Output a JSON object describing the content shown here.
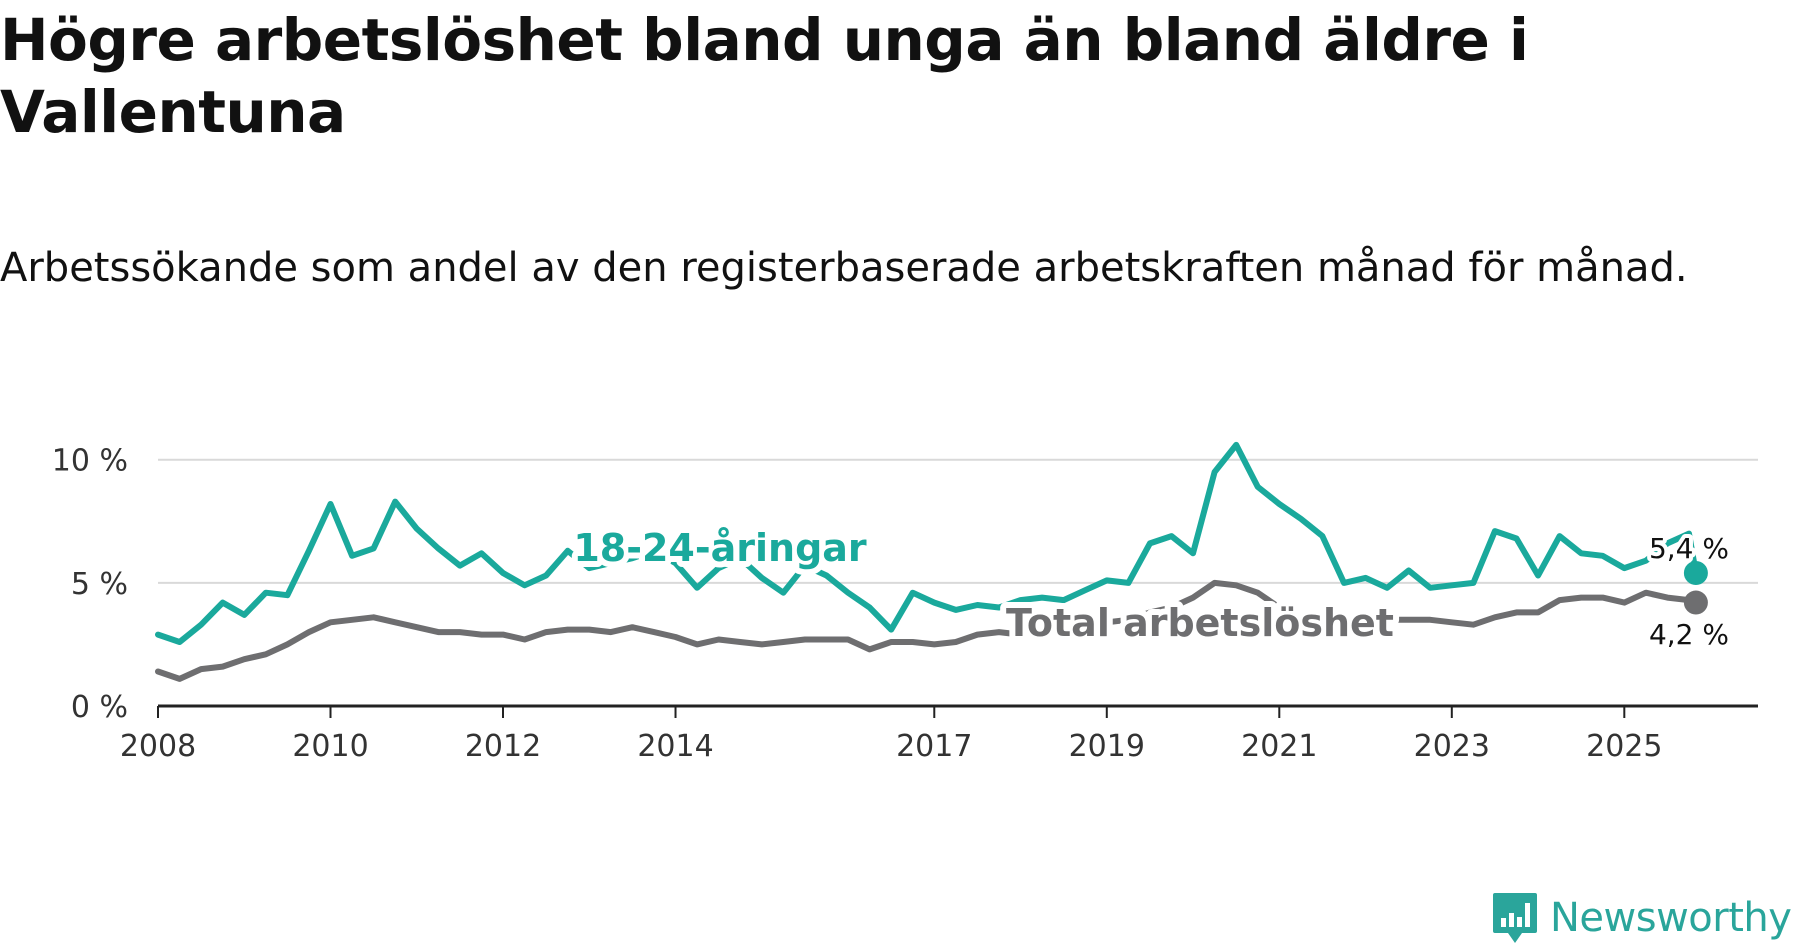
{
  "title": "Högre arbetslöshet bland unga än bland äldre i Vallentuna",
  "subtitle": "Arbetssökande som andel av den registerbaserade arbetskraften månad för månad.",
  "brand": {
    "name": "Newsworthy",
    "color": "#2aa59b",
    "icon": "bar-chart-logo-icon"
  },
  "chart_data": {
    "type": "line",
    "title": "Högre arbetslöshet bland unga än bland äldre i Vallentuna",
    "subtitle": "Arbetssökande som andel av den registerbaserade arbetskraften månad för månad.",
    "xlabel": "",
    "ylabel": "",
    "x_range": [
      2008,
      2026.55
    ],
    "ylim": [
      0,
      10.8
    ],
    "x_ticks": [
      2008,
      2010,
      2012,
      2014,
      2017,
      2019,
      2021,
      2023,
      2025
    ],
    "y_ticks": [
      0,
      5,
      10
    ],
    "y_tick_labels": [
      "0 %",
      "5 %",
      "10 %"
    ],
    "grid": true,
    "series": [
      {
        "name": "18-24-åringar",
        "color": "#1aa99c",
        "end_label": "5,4 %",
        "last_value": 5.4,
        "x": [
          2008.0,
          2008.25,
          2008.5,
          2008.75,
          2009.0,
          2009.25,
          2009.5,
          2009.75,
          2010.0,
          2010.25,
          2010.5,
          2010.75,
          2011.0,
          2011.25,
          2011.5,
          2011.75,
          2012.0,
          2012.25,
          2012.5,
          2012.75,
          2013.0,
          2013.25,
          2013.5,
          2013.75,
          2014.0,
          2014.25,
          2014.5,
          2014.75,
          2015.0,
          2015.25,
          2015.5,
          2015.75,
          2016.0,
          2016.25,
          2016.5,
          2016.75,
          2017.0,
          2017.25,
          2017.5,
          2017.75,
          2018.0,
          2018.25,
          2018.5,
          2018.75,
          2019.0,
          2019.25,
          2019.5,
          2019.75,
          2020.0,
          2020.25,
          2020.5,
          2020.75,
          2021.0,
          2021.25,
          2021.5,
          2021.75,
          2022.0,
          2022.25,
          2022.5,
          2022.75,
          2023.0,
          2023.25,
          2023.5,
          2023.75,
          2024.0,
          2024.25,
          2024.5,
          2024.75,
          2025.0,
          2025.25,
          2025.5,
          2025.75,
          2025.83
        ],
        "values": [
          2.9,
          2.6,
          3.3,
          4.2,
          3.7,
          4.6,
          4.5,
          6.3,
          8.2,
          6.1,
          6.4,
          8.3,
          7.2,
          6.4,
          5.7,
          6.2,
          5.4,
          4.9,
          5.3,
          6.3,
          5.6,
          5.8,
          6.0,
          6.3,
          5.8,
          4.8,
          5.6,
          6.0,
          5.2,
          4.6,
          5.7,
          5.3,
          4.6,
          4.0,
          3.1,
          4.6,
          4.2,
          3.9,
          4.1,
          4.0,
          4.3,
          4.4,
          4.3,
          4.7,
          5.1,
          5.0,
          6.6,
          6.9,
          6.2,
          9.5,
          10.6,
          8.9,
          8.2,
          7.6,
          6.9,
          5.0,
          5.2,
          4.8,
          5.5,
          4.8,
          4.9,
          5.0,
          7.1,
          6.8,
          5.3,
          6.9,
          6.2,
          6.1,
          5.6,
          5.9,
          6.6,
          7.0,
          5.4
        ]
      },
      {
        "name": "Total arbetslöshet",
        "color": "#6e6e70",
        "end_label": "4,2 %",
        "last_value": 4.2,
        "x": [
          2008.0,
          2008.25,
          2008.5,
          2008.75,
          2009.0,
          2009.25,
          2009.5,
          2009.75,
          2010.0,
          2010.25,
          2010.5,
          2010.75,
          2011.0,
          2011.25,
          2011.5,
          2011.75,
          2012.0,
          2012.25,
          2012.5,
          2012.75,
          2013.0,
          2013.25,
          2013.5,
          2013.75,
          2014.0,
          2014.25,
          2014.5,
          2014.75,
          2015.0,
          2015.25,
          2015.5,
          2015.75,
          2016.0,
          2016.25,
          2016.5,
          2016.75,
          2017.0,
          2017.25,
          2017.5,
          2017.75,
          2018.0,
          2018.25,
          2018.5,
          2018.75,
          2019.0,
          2019.25,
          2019.5,
          2019.75,
          2020.0,
          2020.25,
          2020.5,
          2020.75,
          2021.0,
          2021.25,
          2021.5,
          2021.75,
          2022.0,
          2022.25,
          2022.5,
          2022.75,
          2023.0,
          2023.25,
          2023.5,
          2023.75,
          2024.0,
          2024.25,
          2024.5,
          2024.75,
          2025.0,
          2025.25,
          2025.5,
          2025.75,
          2025.83
        ],
        "values": [
          1.4,
          1.1,
          1.5,
          1.6,
          1.9,
          2.1,
          2.5,
          3.0,
          3.4,
          3.5,
          3.6,
          3.4,
          3.2,
          3.0,
          3.0,
          2.9,
          2.9,
          2.7,
          3.0,
          3.1,
          3.1,
          3.0,
          3.2,
          3.0,
          2.8,
          2.5,
          2.7,
          2.6,
          2.5,
          2.6,
          2.7,
          2.7,
          2.7,
          2.3,
          2.6,
          2.6,
          2.5,
          2.6,
          2.9,
          3.0,
          2.9,
          2.9,
          3.1,
          3.3,
          3.4,
          3.5,
          3.8,
          4.0,
          4.4,
          5.0,
          4.9,
          4.6,
          4.0,
          3.4,
          3.3,
          3.2,
          3.3,
          3.5,
          3.5,
          3.5,
          3.4,
          3.3,
          3.6,
          3.8,
          3.8,
          4.3,
          4.4,
          4.4,
          4.2,
          4.6,
          4.4,
          4.3,
          4.2
        ]
      }
    ]
  }
}
